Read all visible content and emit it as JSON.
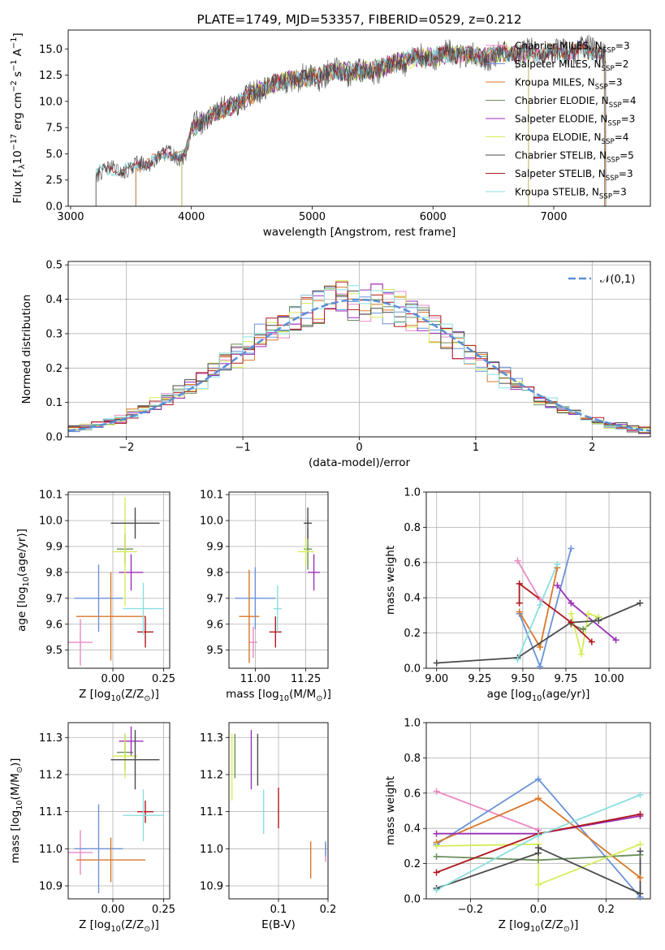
{
  "colors": {
    "chabrier_miles": "#ea8ac4",
    "salpeter_miles": "#6a93d8",
    "kroupa_miles": "#d9782a",
    "chabrier_elodie": "#6b8e5a",
    "salpeter_elodie": "#9b2fb8",
    "kroupa_elodie": "#d6ec58",
    "chabrier_stelib": "#4a4a4a",
    "salpeter_stelib": "#b0181c",
    "kroupa_stelib": "#8adfe0",
    "normal_curve": "#5b8fd8",
    "grid": "#b0b0b0"
  },
  "chart_data": [
    {
      "id": "spectrum",
      "type": "line",
      "title": "PLATE=1749, MJD=53357, FIBERID=0529, z=0.212",
      "xlabel": "wavelength [Angstrom, rest frame]",
      "ylabel": "Flux [f$_\\lambda$10$^{-17}$ erg cm$^{-2}$ s$^{-1}$ A$^{-1}$]",
      "xlim": [
        2980,
        7800
      ],
      "ylim": [
        0,
        16.8
      ],
      "xticks": [
        3000,
        4000,
        5000,
        6000,
        7000
      ],
      "yticks": [
        0.0,
        2.5,
        5.0,
        7.5,
        10.0,
        12.5,
        15.0
      ],
      "grid": false,
      "legend_position": "upper-right",
      "anchors": [
        [
          3200,
          3.2
        ],
        [
          3500,
          3.6
        ],
        [
          3650,
          4.3
        ],
        [
          3800,
          4.9
        ],
        [
          3950,
          4.9
        ],
        [
          4000,
          7.3
        ],
        [
          4200,
          8.9
        ],
        [
          4400,
          9.9
        ],
        [
          4600,
          11.3
        ],
        [
          4800,
          12.0
        ],
        [
          5000,
          12.3
        ],
        [
          5200,
          12.9
        ],
        [
          5400,
          12.8
        ],
        [
          5600,
          13.3
        ],
        [
          5800,
          14.0
        ],
        [
          6000,
          14.3
        ],
        [
          6200,
          14.5
        ],
        [
          6400,
          14.2
        ],
        [
          6600,
          14.6
        ],
        [
          6800,
          14.7
        ],
        [
          7000,
          14.6
        ],
        [
          7200,
          14.9
        ],
        [
          7400,
          14.8
        ]
      ],
      "series": [
        {
          "name": "Chabrier MILES, N$_{SSP}$=3",
          "color_key": "chabrier_miles",
          "x_start": 3540,
          "x_end": 7420
        },
        {
          "name": "Salpeter MILES, N$_{SSP}$=2",
          "color_key": "salpeter_miles",
          "x_start": 3540,
          "x_end": 7420
        },
        {
          "name": "Kroupa MILES, N$_{SSP}$=3",
          "color_key": "kroupa_miles",
          "x_start": 3540,
          "x_end": 7420
        },
        {
          "name": "Chabrier ELODIE, N$_{SSP}$=4",
          "color_key": "chabrier_elodie",
          "x_start": 3920,
          "x_end": 6790
        },
        {
          "name": "Salpeter ELODIE, N$_{SSP}$=3",
          "color_key": "salpeter_elodie",
          "x_start": 3920,
          "x_end": 6790
        },
        {
          "name": "Kroupa ELODIE, N$_{SSP}$=4",
          "color_key": "kroupa_elodie",
          "x_start": 3920,
          "x_end": 6790
        },
        {
          "name": "Chabrier STELIB, N$_{SSP}$=5",
          "color_key": "chabrier_stelib",
          "x_start": 3210,
          "x_end": 7430
        },
        {
          "name": "Salpeter STELIB, N$_{SSP}$=3",
          "color_key": "salpeter_stelib",
          "x_start": 3210,
          "x_end": 7430
        },
        {
          "name": "Kroupa STELIB, N$_{SSP}$=3",
          "color_key": "kroupa_stelib",
          "x_start": 3210,
          "x_end": 7430
        }
      ]
    },
    {
      "id": "residuals",
      "type": "histogram",
      "xlabel": "(data-model)/error",
      "ylabel": "Normed distribution",
      "xlim": [
        -2.5,
        2.5
      ],
      "ylim": [
        0,
        0.51
      ],
      "xticks": [
        -2,
        -1,
        0,
        1,
        2
      ],
      "yticks": [
        0.0,
        0.1,
        0.2,
        0.3,
        0.4,
        0.5
      ],
      "grid": true,
      "legend_position": "upper-right",
      "legend": "$\\mathcal{N}(0,1)$",
      "bin_edges_range": [
        -2.5,
        2.5
      ],
      "n_bins": 50,
      "curve": {
        "name": "$\\mathcal{N}(0,1)$",
        "color_key": "normal_curve"
      },
      "series": [
        {
          "color_key": "chabrier_miles",
          "seed": 3
        },
        {
          "color_key": "salpeter_miles",
          "seed": 7
        },
        {
          "color_key": "kroupa_miles",
          "seed": 11
        },
        {
          "color_key": "chabrier_elodie",
          "seed": 13
        },
        {
          "color_key": "salpeter_elodie",
          "seed": 17
        },
        {
          "color_key": "kroupa_elodie",
          "seed": 19
        },
        {
          "color_key": "chabrier_stelib",
          "seed": 23
        },
        {
          "color_key": "salpeter_stelib",
          "seed": 29
        },
        {
          "color_key": "kroupa_stelib",
          "seed": 31
        }
      ]
    },
    {
      "id": "age_vs_Z",
      "type": "scatter",
      "xlabel": "Z [log$_{10}$(Z/Z$_\\odot$)]",
      "ylabel": "age  [log$_{10}$(age/yr)]",
      "xlim": [
        -0.22,
        0.28
      ],
      "ylim": [
        9.43,
        10.11
      ],
      "xticks": [
        -0.0,
        0.25
      ],
      "xticklabels": [
        "0.00",
        "0.25"
      ],
      "yticks": [
        9.5,
        9.6,
        9.7,
        9.8,
        9.9,
        10.0,
        10.1
      ],
      "grid": true,
      "points": [
        {
          "color_key": "chabrier_miles",
          "x": -0.16,
          "y": 9.53,
          "xerr": 0.06,
          "yerr": 0.09
        },
        {
          "color_key": "salpeter_miles",
          "x": -0.07,
          "y": 9.7,
          "xerr": 0.12,
          "yerr": 0.13
        },
        {
          "color_key": "kroupa_miles",
          "x": -0.01,
          "y": 9.63,
          "xerr": 0.17,
          "yerr": 0.17
        },
        {
          "color_key": "chabrier_elodie",
          "x": 0.06,
          "y": 9.89,
          "xerr": 0.04,
          "yerr": 0.06
        },
        {
          "color_key": "salpeter_elodie",
          "x": 0.09,
          "y": 9.8,
          "xerr": 0.06,
          "yerr": 0.07
        },
        {
          "color_key": "kroupa_elodie",
          "x": 0.06,
          "y": 9.88,
          "xerr": 0.06,
          "yerr": 0.21
        },
        {
          "color_key": "chabrier_stelib",
          "x": 0.11,
          "y": 9.99,
          "xerr": 0.12,
          "yerr": 0.06
        },
        {
          "color_key": "salpeter_stelib",
          "x": 0.16,
          "y": 9.57,
          "xerr": 0.04,
          "yerr": 0.06
        },
        {
          "color_key": "kroupa_stelib",
          "x": 0.15,
          "y": 9.66,
          "xerr": 0.1,
          "yerr": 0.1
        }
      ]
    },
    {
      "id": "age_vs_mass",
      "type": "scatter",
      "xlabel": "mass [log$_{10}$(M/M$_\\odot$)]",
      "ylabel": "",
      "xlim": [
        10.87,
        11.36
      ],
      "ylim": [
        9.43,
        10.11
      ],
      "xticks": [
        11.0,
        11.25
      ],
      "xticklabels": [
        "11.00",
        "11.25"
      ],
      "yticks": [
        9.5,
        9.6,
        9.7,
        9.8,
        9.9,
        10.0,
        10.1
      ],
      "grid": true,
      "points": [
        {
          "color_key": "chabrier_miles",
          "x": 10.99,
          "y": 9.53,
          "xerr": 0.02,
          "yerr": 0.06
        },
        {
          "color_key": "salpeter_miles",
          "x": 11.0,
          "y": 9.7,
          "xerr": 0.1,
          "yerr": 0.12
        },
        {
          "color_key": "kroupa_miles",
          "x": 10.97,
          "y": 9.63,
          "xerr": 0.05,
          "yerr": 0.18
        },
        {
          "color_key": "chabrier_elodie",
          "x": 11.26,
          "y": 9.89,
          "xerr": 0.02,
          "yerr": 0.08
        },
        {
          "color_key": "salpeter_elodie",
          "x": 11.29,
          "y": 9.8,
          "xerr": 0.03,
          "yerr": 0.07
        },
        {
          "color_key": "kroupa_elodie",
          "x": 11.25,
          "y": 9.88,
          "xerr": 0.04,
          "yerr": 0.05
        },
        {
          "color_key": "chabrier_stelib",
          "x": 11.26,
          "y": 9.99,
          "xerr": 0.02,
          "yerr": 0.06
        },
        {
          "color_key": "salpeter_stelib",
          "x": 11.1,
          "y": 9.57,
          "xerr": 0.03,
          "yerr": 0.06
        },
        {
          "color_key": "kroupa_stelib",
          "x": 11.11,
          "y": 9.66,
          "xerr": 0.02,
          "yerr": 0.09
        }
      ]
    },
    {
      "id": "weight_vs_age",
      "type": "line",
      "xlabel": "age  [log$_{10}$(age/yr)]",
      "ylabel": "mass weight",
      "xlim": [
        8.94,
        10.24
      ],
      "ylim": [
        0,
        1
      ],
      "xticks": [
        9.0,
        9.25,
        9.5,
        9.75,
        10.0
      ],
      "xticklabels": [
        "9.00",
        "9.25",
        "9.50",
        "9.75",
        "10.00"
      ],
      "yticks": [
        0.0,
        0.2,
        0.4,
        0.6,
        0.8,
        1.0
      ],
      "grid": true,
      "series": [
        {
          "color_key": "chabrier_miles",
          "x": [
            9.47,
            9.6
          ],
          "y": [
            0.61,
            0.39
          ]
        },
        {
          "color_key": "salpeter_miles",
          "x": [
            9.48,
            9.6,
            9.78
          ],
          "y": [
            0.31,
            0.01,
            0.68
          ]
        },
        {
          "color_key": "kroupa_miles",
          "x": [
            9.48,
            9.6,
            9.7
          ],
          "y": [
            0.32,
            0.12,
            0.57
          ]
        },
        {
          "color_key": "chabrier_elodie",
          "x": [
            9.78,
            9.85,
            9.94
          ],
          "y": [
            0.25,
            0.22,
            0.29
          ]
        },
        {
          "color_key": "salpeter_elodie",
          "x": [
            9.7,
            9.78,
            10.04
          ],
          "y": [
            0.47,
            0.37,
            0.16
          ]
        },
        {
          "color_key": "kroupa_elodie",
          "x": [
            9.78,
            9.84,
            9.88,
            9.94
          ],
          "y": [
            0.31,
            0.08,
            0.31,
            0.29
          ]
        },
        {
          "color_key": "chabrier_stelib",
          "x": [
            9.0,
            9.47,
            9.78,
            9.94,
            10.18
          ],
          "y": [
            0.03,
            0.06,
            0.26,
            0.27,
            0.37
          ]
        },
        {
          "color_key": "salpeter_stelib",
          "x": [
            9.48,
            9.48,
            9.78,
            9.9
          ],
          "y": [
            0.37,
            0.48,
            0.26,
            0.15
          ]
        },
        {
          "color_key": "kroupa_stelib",
          "x": [
            9.47,
            9.6,
            9.7
          ],
          "y": [
            0.05,
            0.36,
            0.59
          ]
        }
      ]
    },
    {
      "id": "mass_vs_Z",
      "type": "scatter",
      "xlabel": "Z [log$_{10}$(Z/Z$_\\odot$)]",
      "ylabel": "mass [log$_{10}$(M/M$_\\odot$)]",
      "xlim": [
        -0.22,
        0.28
      ],
      "ylim": [
        10.865,
        11.34
      ],
      "xticks": [
        -0.0,
        0.25
      ],
      "xticklabels": [
        "0.00",
        "0.25"
      ],
      "yticks": [
        10.9,
        11.0,
        11.1,
        11.2,
        11.3
      ],
      "grid": true,
      "points": [
        {
          "color_key": "chabrier_miles",
          "x": -0.16,
          "y": 10.99,
          "xerr": 0.06,
          "yerr": 0.06
        },
        {
          "color_key": "salpeter_miles",
          "x": -0.07,
          "y": 11.0,
          "xerr": 0.12,
          "yerr": 0.12
        },
        {
          "color_key": "kroupa_miles",
          "x": -0.01,
          "y": 10.97,
          "xerr": 0.17,
          "yerr": 0.06
        },
        {
          "color_key": "chabrier_elodie",
          "x": 0.06,
          "y": 11.26,
          "xerr": 0.04,
          "yerr": 0.05
        },
        {
          "color_key": "salpeter_elodie",
          "x": 0.09,
          "y": 11.29,
          "xerr": 0.06,
          "yerr": 0.04
        },
        {
          "color_key": "kroupa_elodie",
          "x": 0.06,
          "y": 11.25,
          "xerr": 0.06,
          "yerr": 0.06
        },
        {
          "color_key": "chabrier_stelib",
          "x": 0.11,
          "y": 11.24,
          "xerr": 0.12,
          "yerr": 0.08
        },
        {
          "color_key": "salpeter_stelib",
          "x": 0.16,
          "y": 11.1,
          "xerr": 0.04,
          "yerr": 0.03
        },
        {
          "color_key": "kroupa_stelib",
          "x": 0.15,
          "y": 11.09,
          "xerr": 0.1,
          "yerr": 0.07
        }
      ]
    },
    {
      "id": "mass_vs_ebv",
      "type": "scatter",
      "xlabel": "E(B-V)",
      "ylabel": "",
      "xlim": [
        0.0,
        0.2
      ],
      "ylim": [
        10.865,
        11.34
      ],
      "xticks": [
        0.1,
        0.2
      ],
      "xticklabels": [
        "0.1",
        "0.2"
      ],
      "yticks": [
        10.9,
        11.0,
        11.1,
        11.2,
        11.3
      ],
      "grid": true,
      "points": [
        {
          "color_key": "chabrier_miles",
          "x": 0.195,
          "y": 10.99,
          "xerr": 0.0,
          "yerr": 0.025
        },
        {
          "color_key": "salpeter_miles",
          "x": 0.195,
          "y": 11.0,
          "xerr": 0.0,
          "yerr": 0.02
        },
        {
          "color_key": "kroupa_miles",
          "x": 0.165,
          "y": 10.97,
          "xerr": 0.0,
          "yerr": 0.05
        },
        {
          "color_key": "chabrier_elodie",
          "x": 0.012,
          "y": 11.25,
          "xerr": 0.0,
          "yerr": 0.06
        },
        {
          "color_key": "salpeter_elodie",
          "x": 0.045,
          "y": 11.24,
          "xerr": 0.0,
          "yerr": 0.08
        },
        {
          "color_key": "kroupa_elodie",
          "x": 0.006,
          "y": 11.22,
          "xerr": 0.0,
          "yerr": 0.09
        },
        {
          "color_key": "chabrier_stelib",
          "x": 0.058,
          "y": 11.24,
          "xerr": 0.0,
          "yerr": 0.07
        },
        {
          "color_key": "salpeter_stelib",
          "x": 0.1,
          "y": 11.11,
          "xerr": 0.0,
          "yerr": 0.055
        },
        {
          "color_key": "kroupa_stelib",
          "x": 0.07,
          "y": 11.1,
          "xerr": 0.0,
          "yerr": 0.06
        }
      ]
    },
    {
      "id": "weight_vs_Z",
      "type": "line",
      "xlabel": "Z [log$_{10}$(Z/Z$_\\odot$)]",
      "ylabel": "mass weight",
      "xlim": [
        -0.33,
        0.33
      ],
      "ylim": [
        0,
        1
      ],
      "xticks": [
        -0.2,
        0.0,
        0.2
      ],
      "xticklabels": [
        "−0.2",
        "0.0",
        "0.2"
      ],
      "yticks": [
        0.0,
        0.2,
        0.4,
        0.6,
        0.8,
        1.0
      ],
      "grid": true,
      "series": [
        {
          "color_key": "chabrier_miles",
          "x": [
            -0.3,
            0.0
          ],
          "y": [
            0.61,
            0.39
          ]
        },
        {
          "color_key": "salpeter_miles",
          "x": [
            -0.3,
            0.0,
            0.3
          ],
          "y": [
            0.31,
            0.68,
            0.01
          ]
        },
        {
          "color_key": "kroupa_miles",
          "x": [
            -0.3,
            0.0,
            0.3
          ],
          "y": [
            0.32,
            0.57,
            0.12
          ]
        },
        {
          "color_key": "chabrier_elodie",
          "x": [
            -0.3,
            0.0,
            0.3
          ],
          "y": [
            0.24,
            0.22,
            0.25
          ]
        },
        {
          "color_key": "salpeter_elodie",
          "x": [
            -0.3,
            0.0,
            0.3
          ],
          "y": [
            0.37,
            0.37,
            0.47
          ]
        },
        {
          "color_key": "kroupa_elodie",
          "x": [
            -0.3,
            0.0,
            0.0,
            0.3
          ],
          "y": [
            0.3,
            0.31,
            0.08,
            0.31
          ]
        },
        {
          "color_key": "chabrier_stelib",
          "x": [
            -0.3,
            0.0,
            0.0,
            0.3,
            0.3
          ],
          "y": [
            0.06,
            0.26,
            0.29,
            0.03,
            0.27
          ]
        },
        {
          "color_key": "salpeter_stelib",
          "x": [
            -0.3,
            0.0,
            0.3
          ],
          "y": [
            0.15,
            0.37,
            0.48
          ]
        },
        {
          "color_key": "kroupa_stelib",
          "x": [
            -0.3,
            0.0,
            0.3
          ],
          "y": [
            0.05,
            0.36,
            0.59
          ]
        }
      ]
    }
  ]
}
